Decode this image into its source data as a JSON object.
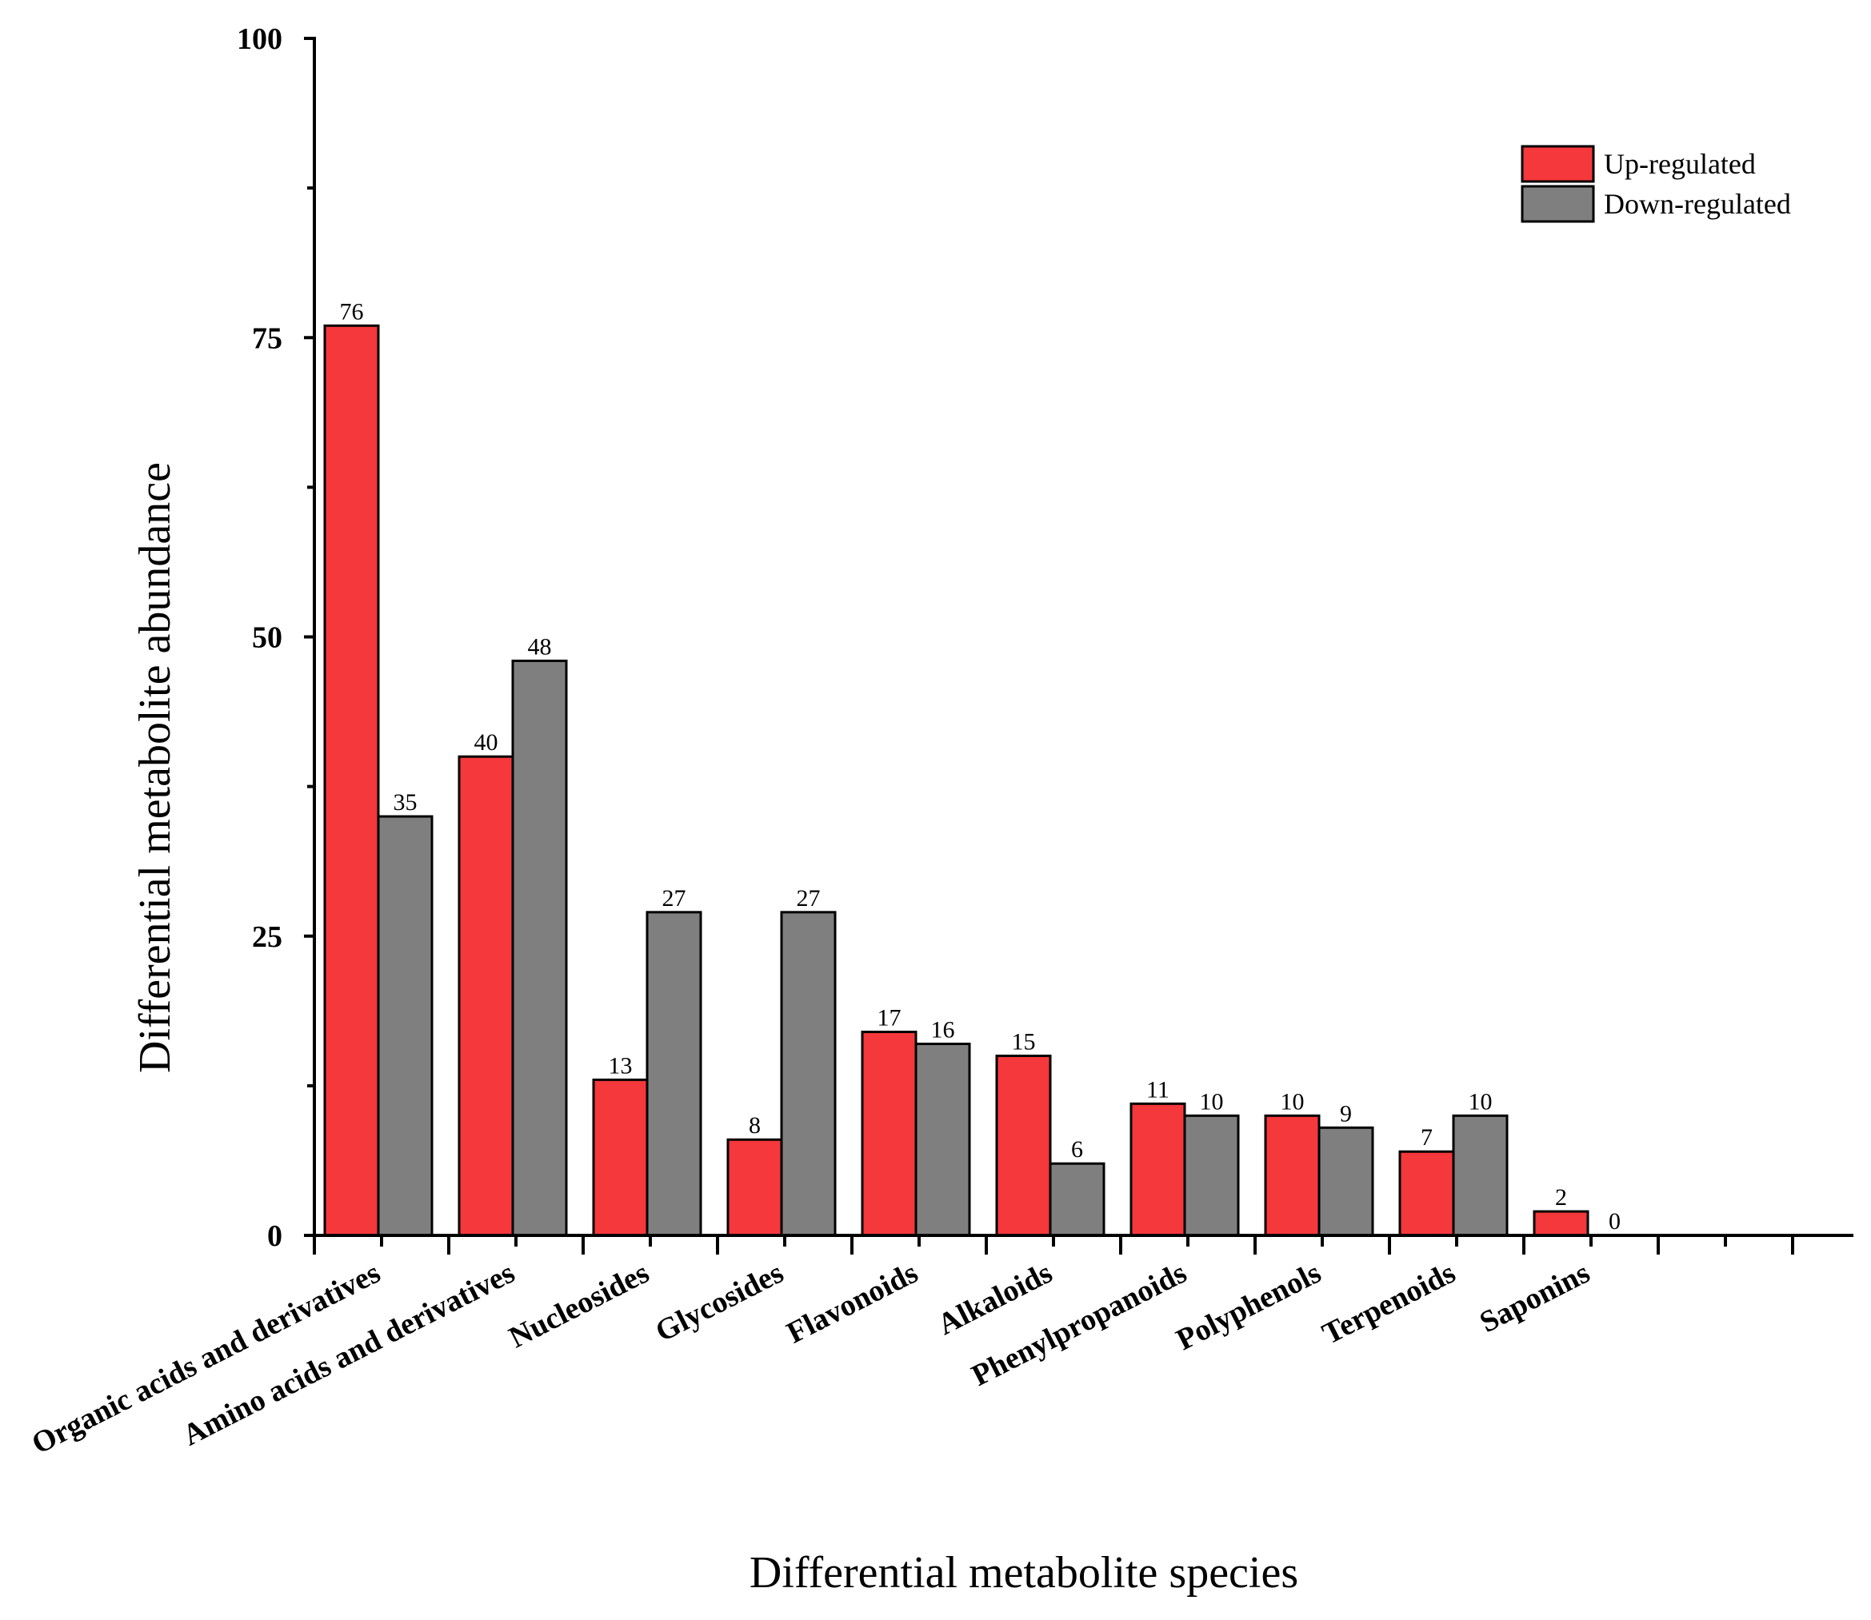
{
  "chart_data": {
    "type": "bar",
    "categories": [
      "Organic acids and derivatives",
      "Amino acids and derivatives",
      "Nucleosides",
      "Glycosides",
      "Flavonoids",
      "Alkaloids",
      "Phenylpropanoids",
      "Polyphenols",
      "Terpenoids",
      "Saponins"
    ],
    "series": [
      {
        "name": "Up-regulated",
        "color": "#F5383B",
        "values": [
          76,
          40,
          13,
          8,
          17,
          15,
          11,
          10,
          7,
          2
        ]
      },
      {
        "name": "Down-regulated",
        "color": "#7F7F7F",
        "values": [
          35,
          48,
          27,
          27,
          16,
          6,
          10,
          9,
          10,
          0
        ]
      }
    ],
    "xlabel": "Differential metabolite species",
    "ylabel": "Differential metabolite abundance",
    "ylim": [
      0,
      100
    ],
    "yticks": [
      0,
      25,
      50,
      75,
      100
    ],
    "legend_position": "top-right",
    "grid": false
  }
}
